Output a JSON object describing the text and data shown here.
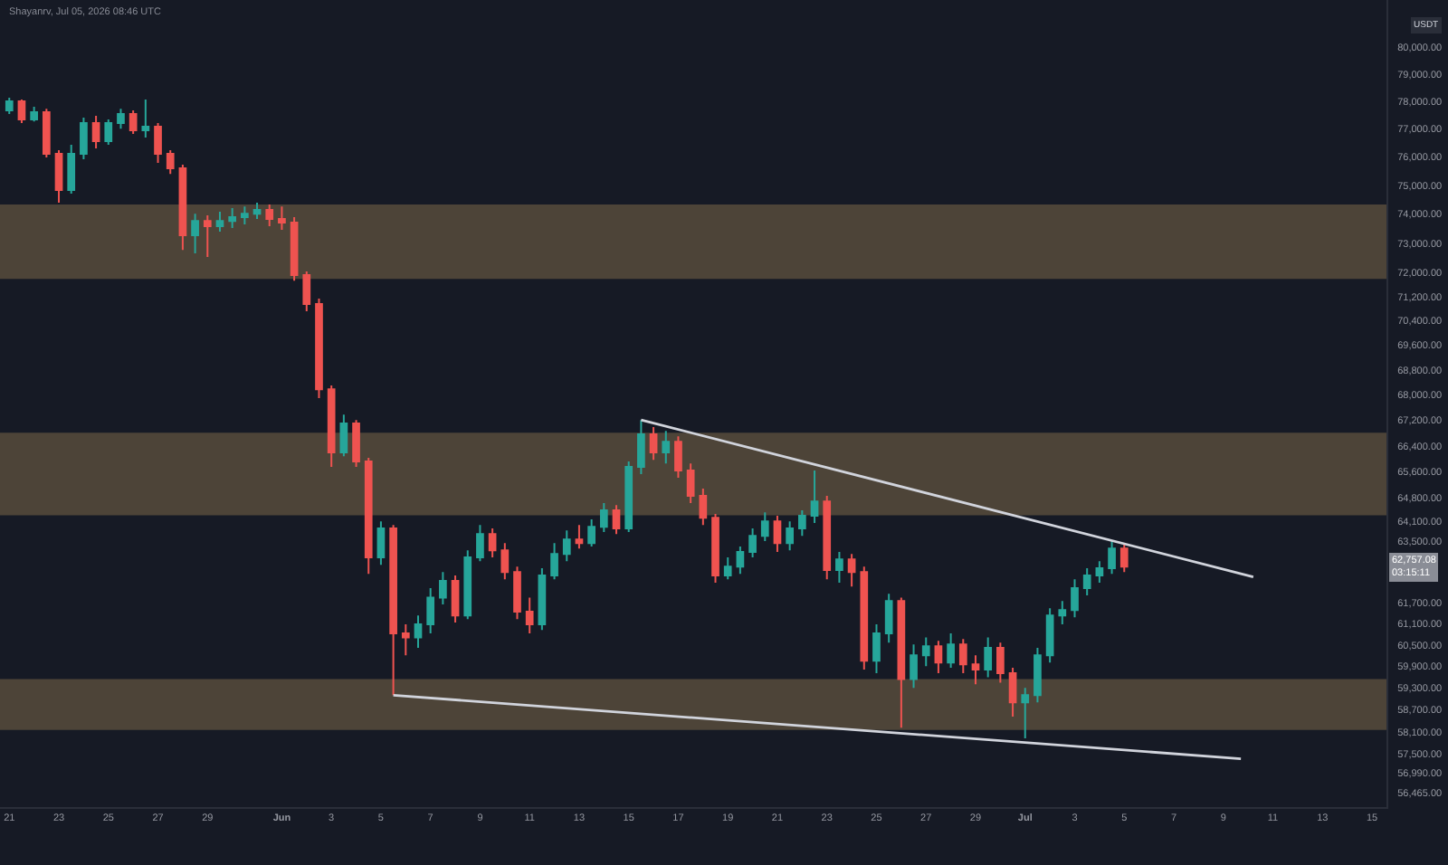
{
  "chart_data": {
    "type": "candlestick",
    "x": [
      "2026-05-21T00:00",
      "2026-05-21T12:00",
      "2026-05-22T00:00",
      "2026-05-22T12:00",
      "2026-05-23T00:00",
      "2026-05-23T12:00",
      "2026-05-24T00:00",
      "2026-05-24T12:00",
      "2026-05-25T00:00",
      "2026-05-25T12:00",
      "2026-05-26T00:00",
      "2026-05-26T12:00",
      "2026-05-27T00:00",
      "2026-05-27T12:00",
      "2026-05-28T00:00",
      "2026-05-28T12:00",
      "2026-05-29T00:00",
      "2026-05-29T12:00",
      "2026-05-30T00:00",
      "2026-05-30T12:00",
      "2026-05-31T00:00",
      "2026-05-31T12:00",
      "2026-06-01T00:00",
      "2026-06-01T12:00",
      "2026-06-02T00:00",
      "2026-06-02T12:00",
      "2026-06-03T00:00",
      "2026-06-03T12:00",
      "2026-06-04T00:00",
      "2026-06-04T12:00",
      "2026-06-05T00:00",
      "2026-06-05T12:00",
      "2026-06-06T00:00",
      "2026-06-06T12:00",
      "2026-06-07T00:00",
      "2026-06-07T12:00",
      "2026-06-08T00:00",
      "2026-06-08T12:00",
      "2026-06-09T00:00",
      "2026-06-09T12:00",
      "2026-06-10T00:00",
      "2026-06-10T12:00",
      "2026-06-11T00:00",
      "2026-06-11T12:00",
      "2026-06-12T00:00",
      "2026-06-12T12:00",
      "2026-06-13T00:00",
      "2026-06-13T12:00",
      "2026-06-14T00:00",
      "2026-06-14T12:00",
      "2026-06-15T00:00",
      "2026-06-15T12:00",
      "2026-06-16T00:00",
      "2026-06-16T12:00",
      "2026-06-17T00:00",
      "2026-06-17T12:00",
      "2026-06-18T00:00",
      "2026-06-18T12:00",
      "2026-06-19T00:00",
      "2026-06-19T12:00",
      "2026-06-20T00:00",
      "2026-06-20T12:00",
      "2026-06-21T00:00",
      "2026-06-21T12:00",
      "2026-06-22T00:00",
      "2026-06-22T12:00",
      "2026-06-23T00:00",
      "2026-06-23T12:00",
      "2026-06-24T00:00",
      "2026-06-24T12:00",
      "2026-06-25T00:00",
      "2026-06-25T12:00",
      "2026-06-26T00:00",
      "2026-06-26T12:00",
      "2026-06-27T00:00",
      "2026-06-27T12:00",
      "2026-06-28T00:00",
      "2026-06-28T12:00",
      "2026-06-29T00:00",
      "2026-06-29T12:00",
      "2026-06-30T00:00",
      "2026-06-30T12:00",
      "2026-07-01T00:00",
      "2026-07-01T12:00",
      "2026-07-02T00:00",
      "2026-07-02T12:00",
      "2026-07-03T00:00",
      "2026-07-03T12:00",
      "2026-07-04T00:00",
      "2026-07-04T12:00",
      "2026-07-05T00:00"
    ],
    "ohlc": [
      [
        77670,
        78130,
        77540,
        78000
      ],
      [
        78000,
        78060,
        77210,
        77340
      ],
      [
        77340,
        77800,
        77270,
        77600
      ],
      [
        77600,
        77730,
        75980,
        76110
      ],
      [
        76110,
        76240,
        74390,
        74830
      ],
      [
        74830,
        76430,
        74710,
        76110
      ],
      [
        76110,
        77410,
        75920,
        77210
      ],
      [
        77210,
        77470,
        76300,
        76560
      ],
      [
        76560,
        77340,
        76430,
        77210
      ],
      [
        77210,
        77730,
        77010,
        77540
      ],
      [
        77540,
        77670,
        76820,
        76950
      ],
      [
        76950,
        78060,
        76690,
        77080
      ],
      [
        77080,
        77210,
        75790,
        76110
      ],
      [
        76110,
        76240,
        75400,
        75600
      ],
      [
        75600,
        75720,
        72770,
        73270
      ],
      [
        73270,
        74010,
        72650,
        73760
      ],
      [
        73760,
        73950,
        72530,
        73580
      ],
      [
        73580,
        74080,
        73390,
        73760
      ],
      [
        73760,
        74200,
        73520,
        73890
      ],
      [
        73890,
        74260,
        73640,
        74010
      ],
      [
        74010,
        74390,
        73830,
        74140
      ],
      [
        74140,
        74330,
        73580,
        73830
      ],
      [
        73830,
        74260,
        73450,
        73700
      ],
      [
        73700,
        73890,
        71730,
        71920
      ],
      [
        71920,
        72040,
        70710,
        70950
      ],
      [
        70950,
        71130,
        67900,
        68180
      ],
      [
        68180,
        68300,
        65750,
        66200
      ],
      [
        66200,
        67380,
        66080,
        67100
      ],
      [
        67100,
        67210,
        65750,
        65920
      ],
      [
        65920,
        66030,
        62550,
        63030
      ],
      [
        63030,
        64100,
        62810,
        63890
      ],
      [
        63890,
        63990,
        59100,
        60830
      ],
      [
        60830,
        61090,
        60210,
        60720
      ],
      [
        60720,
        61340,
        60420,
        61090
      ],
      [
        61090,
        62130,
        60830,
        61860
      ],
      [
        61860,
        62600,
        61660,
        62340
      ],
      [
        62340,
        62500,
        61140,
        61340
      ],
      [
        61340,
        63240,
        61240,
        63030
      ],
      [
        63030,
        63990,
        62920,
        63720
      ],
      [
        63720,
        63890,
        63030,
        63240
      ],
      [
        63240,
        63450,
        62390,
        62600
      ],
      [
        62600,
        62760,
        61240,
        61450
      ],
      [
        61450,
        61860,
        60830,
        61090
      ],
      [
        61090,
        62710,
        60930,
        62500
      ],
      [
        62500,
        63450,
        62390,
        63130
      ],
      [
        63130,
        63830,
        62920,
        63560
      ],
      [
        63560,
        63990,
        63290,
        63450
      ],
      [
        63450,
        64160,
        63350,
        63940
      ],
      [
        63940,
        64650,
        63780,
        64430
      ],
      [
        64430,
        64590,
        63720,
        63890
      ],
      [
        63890,
        65920,
        63780,
        65750
      ],
      [
        65750,
        67210,
        65530,
        66760
      ],
      [
        66760,
        66990,
        65970,
        66200
      ],
      [
        66200,
        66870,
        65860,
        66530
      ],
      [
        66530,
        66700,
        65420,
        65640
      ],
      [
        65640,
        65860,
        64650,
        64870
      ],
      [
        64870,
        65090,
        63990,
        64210
      ],
      [
        64210,
        64320,
        62290,
        62500
      ],
      [
        62500,
        63030,
        62390,
        62760
      ],
      [
        62760,
        63350,
        62550,
        63190
      ],
      [
        63190,
        63890,
        63030,
        63670
      ],
      [
        63670,
        64370,
        63510,
        64100
      ],
      [
        64100,
        64270,
        63190,
        63450
      ],
      [
        63450,
        64100,
        63240,
        63890
      ],
      [
        63890,
        64430,
        63670,
        64270
      ],
      [
        64270,
        65640,
        64050,
        64700
      ],
      [
        64700,
        64870,
        62390,
        62660
      ],
      [
        62660,
        63190,
        62290,
        62970
      ],
      [
        62970,
        63130,
        62180,
        62600
      ],
      [
        62600,
        62760,
        59810,
        60060
      ],
      [
        60060,
        61090,
        59710,
        60830
      ],
      [
        60830,
        61970,
        60570,
        61760
      ],
      [
        61760,
        61860,
        58210,
        59550
      ],
      [
        59550,
        60520,
        59300,
        60210
      ],
      [
        60210,
        60720,
        59910,
        60470
      ],
      [
        60470,
        60620,
        59710,
        60010
      ],
      [
        60010,
        60830,
        59860,
        60520
      ],
      [
        60520,
        60670,
        59710,
        59960
      ],
      [
        59960,
        60210,
        59400,
        59810
      ],
      [
        59810,
        60720,
        59600,
        60420
      ],
      [
        60420,
        60570,
        59450,
        59710
      ],
      [
        59710,
        59860,
        58510,
        58900
      ],
      [
        58900,
        59300,
        57920,
        59100
      ],
      [
        59100,
        60420,
        58900,
        60210
      ],
      [
        60210,
        61550,
        60010,
        61340
      ],
      [
        61340,
        61760,
        61090,
        61500
      ],
      [
        61500,
        62390,
        61290,
        62130
      ],
      [
        62130,
        62710,
        61920,
        62500
      ],
      [
        62500,
        62920,
        62290,
        62710
      ],
      [
        62710,
        63510,
        62550,
        63290
      ],
      [
        63290,
        63450,
        62600,
        62757.08
      ]
    ],
    "colors": [
      "#26a69a",
      "#ef5350",
      "#26a69a",
      "#ef5350",
      "#ef5350",
      "#26a69a",
      "#26a69a",
      "#ef5350",
      "#26a69a",
      "#26a69a",
      "#ef5350",
      "#26a69a",
      "#ef5350",
      "#ef5350",
      "#ef5350",
      "#26a69a",
      "#ef5350",
      "#26a69a",
      "#26a69a",
      "#26a69a",
      "#26a69a",
      "#ef5350",
      "#ef5350",
      "#ef5350",
      "#ef5350",
      "#ef5350",
      "#ef5350",
      "#26a69a",
      "#ef5350",
      "#ef5350",
      "#26a69a",
      "#ef5350",
      "#ef5350",
      "#26a69a",
      "#26a69a",
      "#26a69a",
      "#ef5350",
      "#26a69a",
      "#26a69a",
      "#ef5350",
      "#ef5350",
      "#ef5350",
      "#ef5350",
      "#26a69a",
      "#26a69a",
      "#26a69a",
      "#ef5350",
      "#26a69a",
      "#26a69a",
      "#ef5350",
      "#26a69a",
      "#26a69a",
      "#ef5350",
      "#26a69a",
      "#ef5350",
      "#ef5350",
      "#ef5350",
      "#ef5350",
      "#26a69a",
      "#26a69a",
      "#26a69a",
      "#26a69a",
      "#ef5350",
      "#26a69a",
      "#26a69a",
      "#26a69a",
      "#ef5350",
      "#26a69a",
      "#ef5350",
      "#ef5350",
      "#26a69a",
      "#26a69a",
      "#ef5350",
      "#26a69a",
      "#26a69a",
      "#ef5350",
      "#26a69a",
      "#ef5350",
      "#ef5350",
      "#26a69a",
      "#ef5350",
      "#ef5350",
      "#26a69a",
      "#26a69a",
      "#26a69a",
      "#26a69a",
      "#26a69a",
      "#26a69a",
      "#26a69a",
      "#26a69a",
      "#ef5350"
    ],
    "series": [
      {
        "type": "line",
        "x": [
          "2026-06-15T12:00",
          "2026-07-10T05:00"
        ],
        "values": [
          67210,
          62460
        ],
        "color": "#d1d4dc"
      },
      {
        "type": "line",
        "x": [
          "2026-06-05T12:00",
          "2026-07-09T17:00"
        ],
        "values": [
          59100,
          57370
        ],
        "color": "#d1d4dc"
      }
    ],
    "bands": [
      {
        "axis": "y",
        "from": 71790,
        "to": 74330,
        "color": "#4d4438"
      },
      {
        "axis": "y",
        "from": 64280,
        "to": 66810,
        "color": "#4d4438"
      },
      {
        "axis": "y",
        "from": 58150,
        "to": 59550,
        "color": "#4d4438"
      }
    ],
    "annotations": [
      "Shayanrv, Jul 05, 2026 08:46 UTC",
      "USDT",
      {
        "text": "62,757.08\n03:15:11",
        "y": 62757.08
      }
    ],
    "log": true,
    "xlim": [
      "2026-05-20T15:00",
      "2026-07-15T14:00"
    ],
    "xticks": [
      {
        "value": "2026-05-21",
        "label": "21"
      },
      {
        "value": "2026-05-23",
        "label": "23"
      },
      {
        "value": "2026-05-25",
        "label": "25"
      },
      {
        "value": "2026-05-27",
        "label": "27"
      },
      {
        "value": "2026-05-29",
        "label": "29"
      },
      {
        "value": "2026-06-01",
        "label": "Jun"
      },
      {
        "value": "2026-06-03",
        "label": "3"
      },
      {
        "value": "2026-06-05",
        "label": "5"
      },
      {
        "value": "2026-06-07",
        "label": "7"
      },
      {
        "value": "2026-06-09",
        "label": "9"
      },
      {
        "value": "2026-06-11",
        "label": "11"
      },
      {
        "value": "2026-06-13",
        "label": "13"
      },
      {
        "value": "2026-06-15",
        "label": "15"
      },
      {
        "value": "2026-06-17",
        "label": "17"
      },
      {
        "value": "2026-06-19",
        "label": "19"
      },
      {
        "value": "2026-06-21",
        "label": "21"
      },
      {
        "value": "2026-06-23",
        "label": "23"
      },
      {
        "value": "2026-06-25",
        "label": "25"
      },
      {
        "value": "2026-06-27",
        "label": "27"
      },
      {
        "value": "2026-06-29",
        "label": "29"
      },
      {
        "value": "2026-07-01",
        "label": "Jul"
      },
      {
        "value": "2026-07-03",
        "label": "3"
      },
      {
        "value": "2026-07-05",
        "label": "5"
      },
      {
        "value": "2026-07-07",
        "label": "7"
      },
      {
        "value": "2026-07-09",
        "label": "9"
      },
      {
        "value": "2026-07-11",
        "label": "11"
      },
      {
        "value": "2026-07-13",
        "label": "13"
      },
      {
        "value": "2026-07-15",
        "label": "15"
      }
    ],
    "ylim": [
      56090,
      81780
    ],
    "yticks": [
      {
        "value": 80000,
        "label": "80,000.00"
      },
      {
        "value": 79000,
        "label": "79,000.00"
      },
      {
        "value": 78000,
        "label": "78,000.00"
      },
      {
        "value": 77000,
        "label": "77,000.00"
      },
      {
        "value": 76000,
        "label": "76,000.00"
      },
      {
        "value": 75000,
        "label": "75,000.00"
      },
      {
        "value": 74000,
        "label": "74,000.00"
      },
      {
        "value": 73000,
        "label": "73,000.00"
      },
      {
        "value": 72000,
        "label": "72,000.00"
      },
      {
        "value": 71200,
        "label": "71,200.00"
      },
      {
        "value": 70400,
        "label": "70,400.00"
      },
      {
        "value": 69600,
        "label": "69,600.00"
      },
      {
        "value": 68800,
        "label": "68,800.00"
      },
      {
        "value": 68000,
        "label": "68,000.00"
      },
      {
        "value": 67200,
        "label": "67,200.00"
      },
      {
        "value": 66400,
        "label": "66,400.00"
      },
      {
        "value": 65600,
        "label": "65,600.00"
      },
      {
        "value": 64800,
        "label": "64,800.00"
      },
      {
        "value": 64100,
        "label": "64,100.00"
      },
      {
        "value": 63500,
        "label": "63,500.00"
      },
      {
        "value": 61700,
        "label": "61,700.00"
      },
      {
        "value": 61100,
        "label": "61,100.00"
      },
      {
        "value": 60500,
        "label": "60,500.00"
      },
      {
        "value": 59900,
        "label": "59,900.00"
      },
      {
        "value": 59300,
        "label": "59,300.00"
      },
      {
        "value": 58700,
        "label": "58,700.00"
      },
      {
        "value": 58100,
        "label": "58,100.00"
      },
      {
        "value": 57500,
        "label": "57,500.00"
      },
      {
        "value": 56990,
        "label": "56,990.00"
      },
      {
        "value": 56465,
        "label": "56,465.00"
      }
    ],
    "grid": false
  }
}
